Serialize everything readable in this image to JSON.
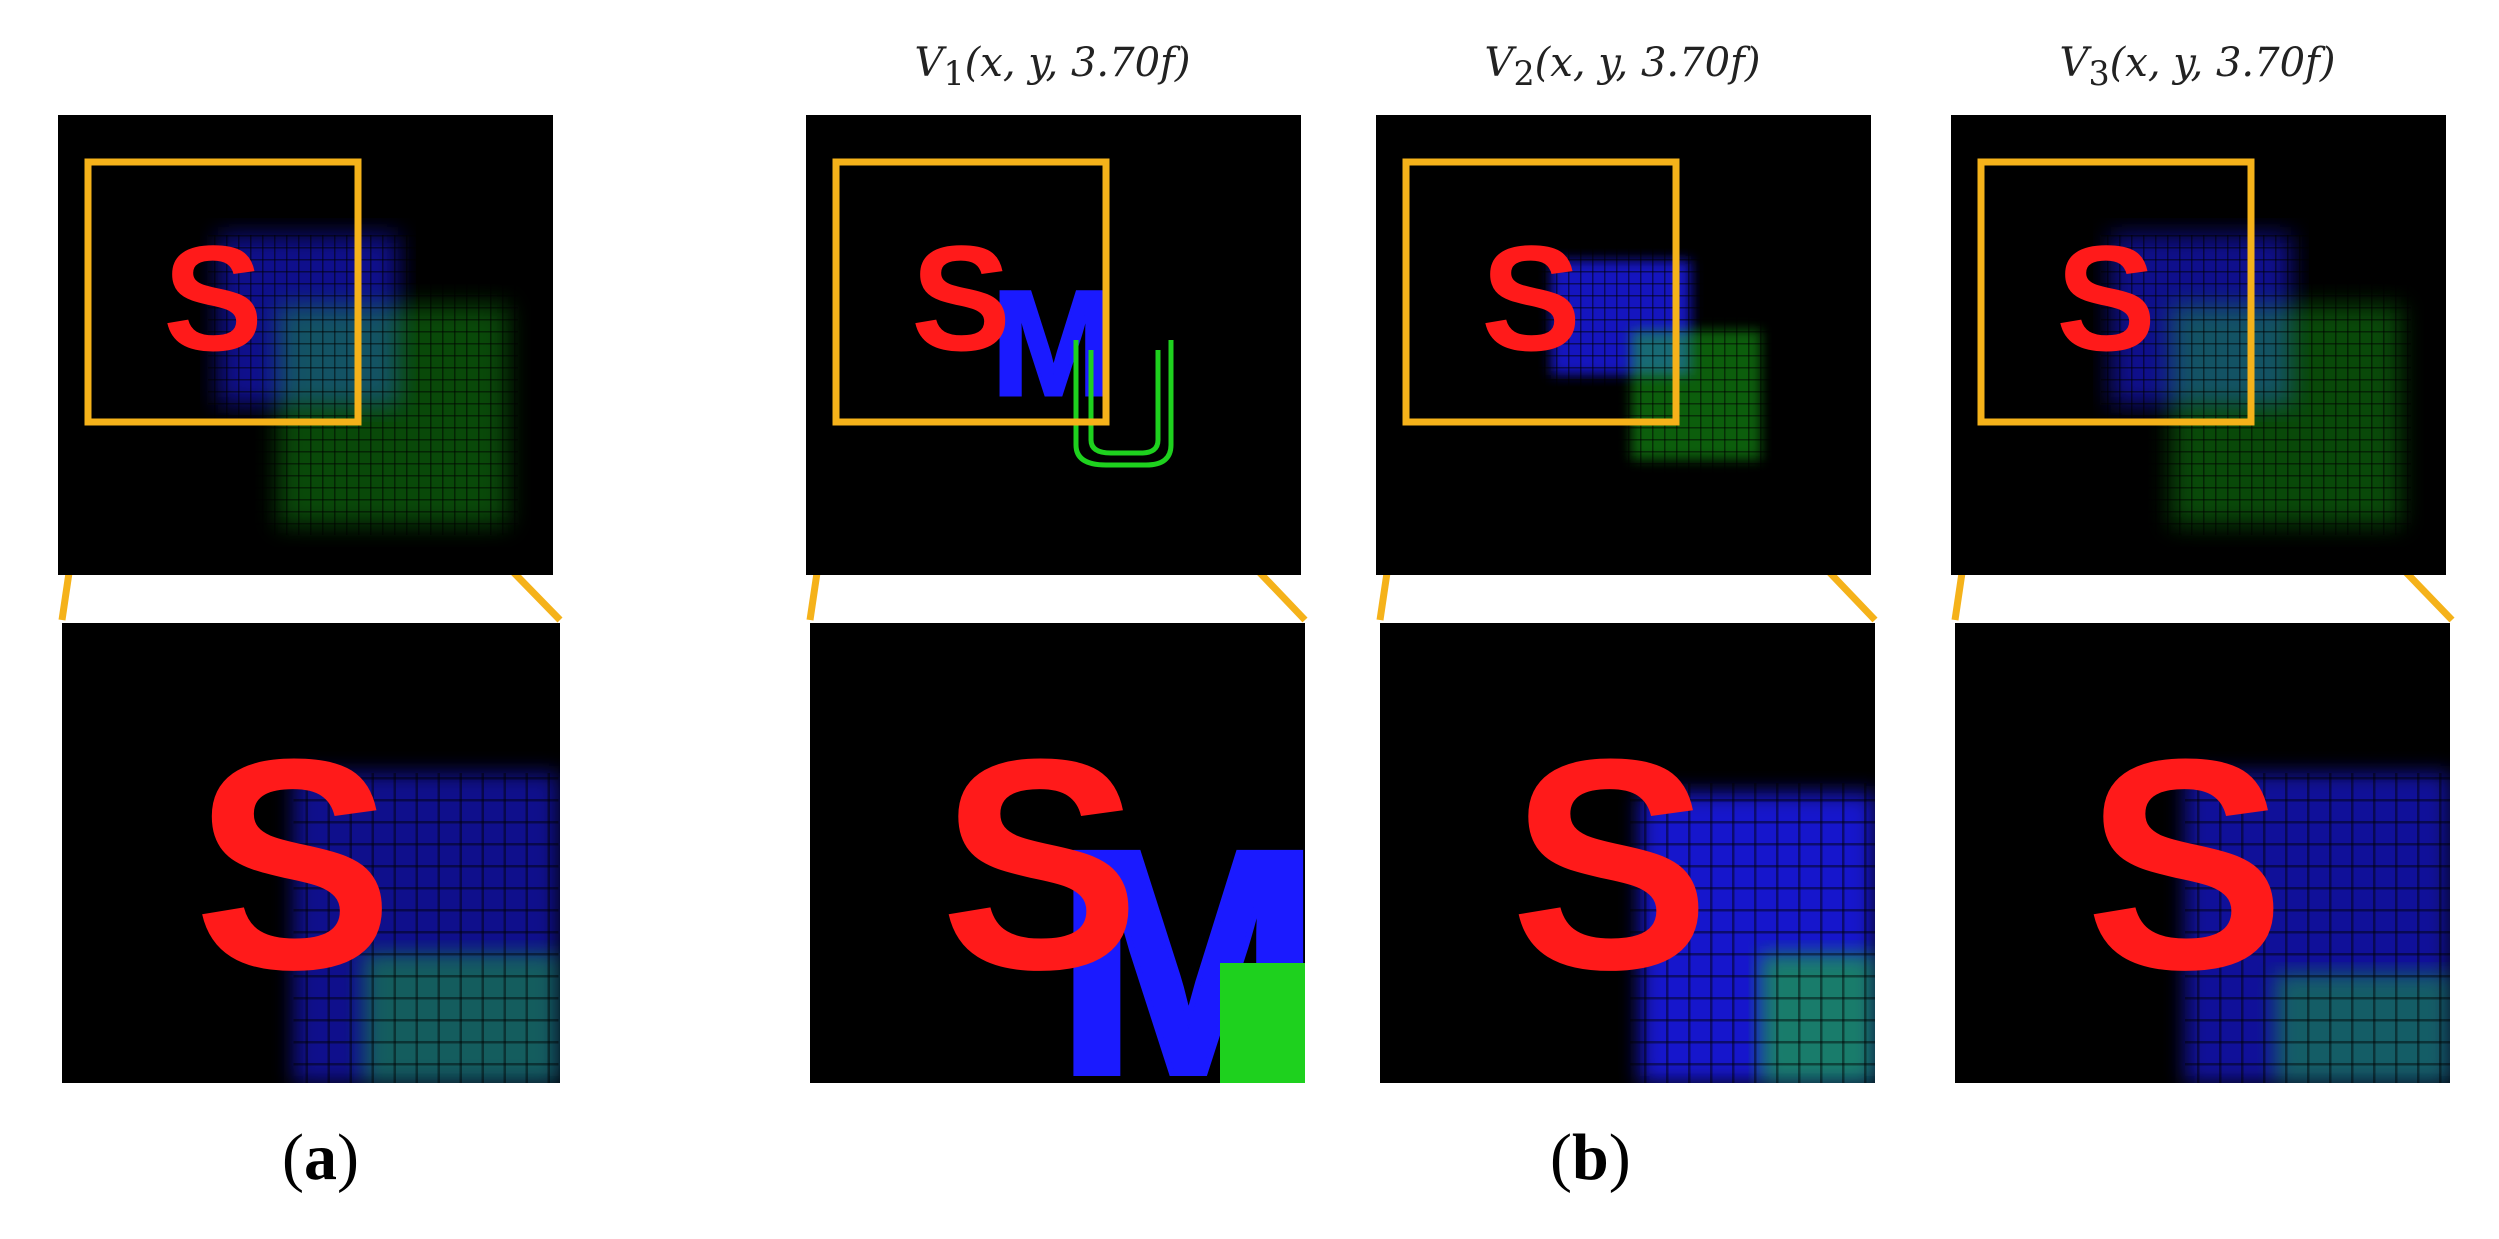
{
  "panels": [
    {
      "title_var": "",
      "title_sub": "",
      "title_args": ""
    },
    {
      "title_var": "V",
      "title_sub": "1",
      "title_args": "(x, y, 3.70f)"
    },
    {
      "title_var": "V",
      "title_sub": "2",
      "title_args": "(x, y, 3.70f)"
    },
    {
      "title_var": "V",
      "title_sub": "3",
      "title_args": "(x, y, 3.70f)"
    }
  ],
  "letters": {
    "red": "S",
    "blue": "M",
    "green": "U"
  },
  "captions": {
    "a": "a",
    "b": "b"
  },
  "colors": {
    "red": "#ff1a1a",
    "blue": "#1a1aff",
    "green": "#1ed11e",
    "frame": "#f5b21a",
    "background": "#000000"
  }
}
